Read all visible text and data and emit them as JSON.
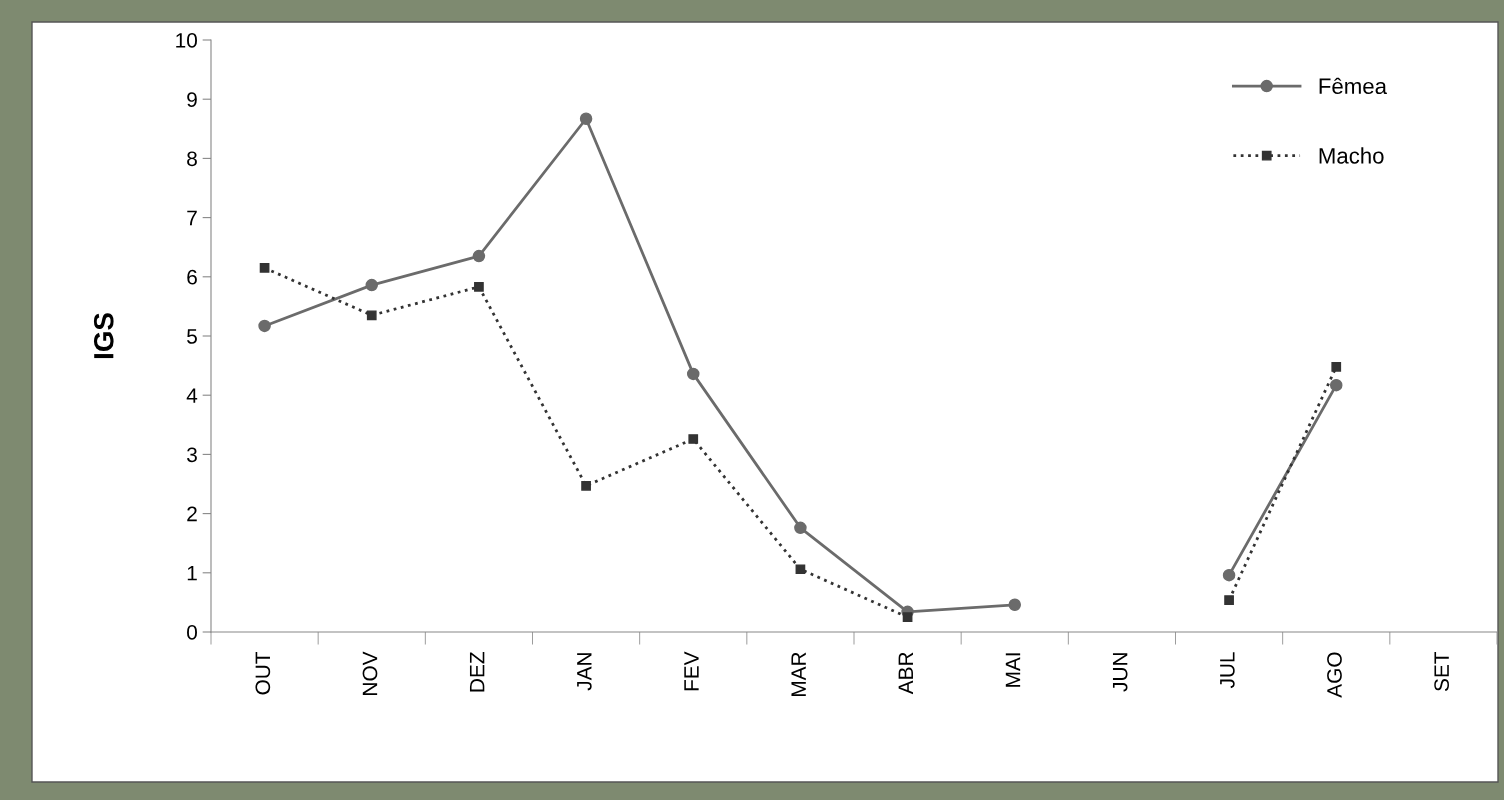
{
  "chart_data": {
    "type": "line",
    "ylabel": "IGS",
    "categories": [
      "OUT",
      "NOV",
      "DEZ",
      "JAN",
      "FEV",
      "MAR",
      "ABR",
      "MAI",
      "JUN",
      "JUL",
      "AGO",
      "SET"
    ],
    "series": [
      {
        "name": "Fêmea",
        "color": "#6b6b6b",
        "marker": "circle",
        "line_style": "solid",
        "values": [
          5.17,
          5.86,
          6.35,
          8.67,
          4.36,
          1.76,
          0.34,
          0.46,
          null,
          0.96,
          4.17,
          null
        ]
      },
      {
        "name": "Macho",
        "color": "#333333",
        "marker": "square",
        "line_style": "dotted",
        "values": [
          6.15,
          5.35,
          5.83,
          2.47,
          3.26,
          1.06,
          0.25,
          null,
          null,
          0.54,
          4.48,
          null
        ]
      }
    ],
    "ylim": [
      0,
      10
    ],
    "yticks": [
      0,
      1,
      2,
      3,
      4,
      5,
      6,
      7,
      8,
      9,
      10
    ],
    "grid": false,
    "legend": "top right"
  }
}
